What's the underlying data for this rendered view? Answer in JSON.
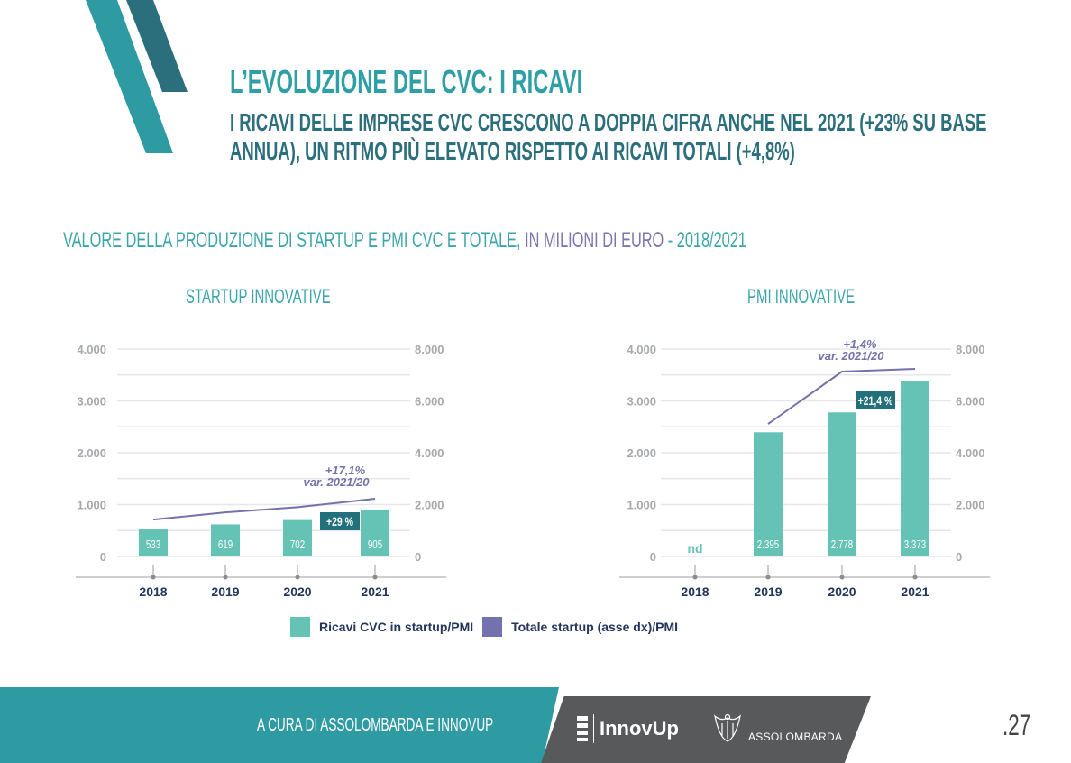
{
  "header": {
    "title": "L’EVOLUZIONE DEL CVC: I RICAVI",
    "subtitle_line1": "I RICAVI DELLE IMPRESE CVC CRESCONO A DOPPIA CIFRA ANCHE NEL 2021 (+23% SU BASE",
    "subtitle_line2": "ANNUA), UN RITMO PIÙ ELEVATO RISPETTO AI RICAVI TOTALI (+4,8%)",
    "chart_heading_part1": "VALORE DELLA PRODUZIONE DI STARTUP E PMI CVC E TOTALE,",
    "chart_heading_part2": " IN MILIONI DI EURO",
    "chart_heading_part3": " - 2018/2021"
  },
  "colors": {
    "bar": "#64c3b5",
    "line": "#7472ae",
    "badge": "#22707b",
    "teal": "#2e9aa2",
    "grey": "#58595b",
    "year": "#23355a",
    "axis": "#a7a9ac"
  },
  "legend": {
    "items": [
      {
        "label": "Ricavi CVC in startup/PMI",
        "color": "#64c3b5"
      },
      {
        "label": "Totale startup (asse dx)/PMI",
        "color": "#7472ae"
      }
    ]
  },
  "chart_data": [
    {
      "type": "bar+line",
      "title": "STARTUP INNOVATIVE",
      "categories": [
        "2018",
        "2019",
        "2020",
        "2021"
      ],
      "left_ylim": [
        0,
        4000
      ],
      "left_ticks": [
        "0",
        "1.000",
        "2.000",
        "3.000",
        "4.000"
      ],
      "right_ylim": [
        0,
        8000
      ],
      "right_ticks": [
        "0",
        "2.000",
        "4.000",
        "6.000",
        "8.000"
      ],
      "grid": true,
      "series": [
        {
          "name": "Ricavi CVC in startup/PMI",
          "type": "bar",
          "axis": "left",
          "values": [
            533,
            619,
            702,
            905
          ],
          "labels": [
            "533",
            "619",
            "702",
            "905"
          ]
        },
        {
          "name": "Totale startup (asse dx)/PMI",
          "type": "line",
          "axis": "right",
          "values": [
            1420,
            1700,
            1900,
            2225
          ]
        }
      ],
      "annotations": {
        "bar_growth": "+29 %",
        "line_growth": "+17,1%",
        "line_growth_note": "var. 2021/20"
      }
    },
    {
      "type": "bar+line",
      "title": "PMI INNOVATIVE",
      "categories": [
        "2018",
        "2019",
        "2020",
        "2021"
      ],
      "left_ylim": [
        0,
        4000
      ],
      "left_ticks": [
        "0",
        "1.000",
        "2.000",
        "3.000",
        "4.000"
      ],
      "right_ylim": [
        0,
        8000
      ],
      "right_ticks": [
        "0",
        "2.000",
        "4.000",
        "6.000",
        "8.000"
      ],
      "grid": true,
      "series": [
        {
          "name": "Ricavi CVC in startup/PMI",
          "type": "bar",
          "axis": "left",
          "values": [
            null,
            2395,
            2778,
            3373
          ],
          "labels": [
            "nd",
            "2.395",
            "2.778",
            "3.373"
          ]
        },
        {
          "name": "Totale startup (asse dx)/PMI",
          "type": "line",
          "axis": "right",
          "values": [
            null,
            5110,
            7130,
            7235
          ]
        }
      ],
      "annotations": {
        "bar_growth": "+21,4 %",
        "line_growth": "+1,4%",
        "line_growth_note": "var. 2021/20"
      }
    }
  ],
  "footer": {
    "credit": "A CURA DI ASSOLOMBARDA E INNOVUP",
    "page_number": ".27",
    "logo_innovup": "InnovUp",
    "logo_assolombarda": "ASSOLOMBARDA"
  }
}
